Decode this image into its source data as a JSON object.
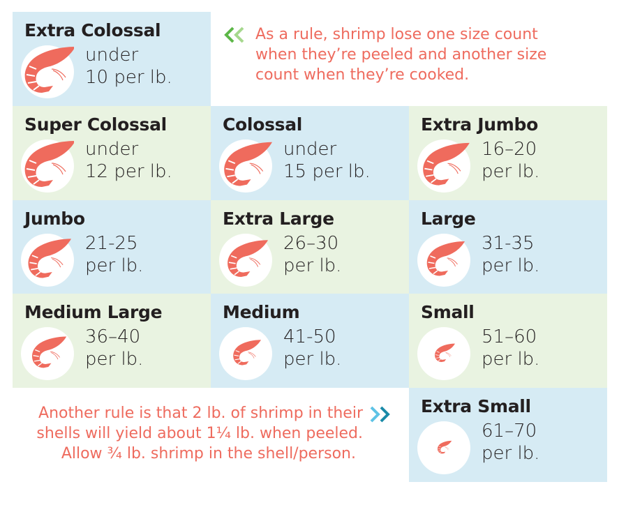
{
  "sizes": [
    {
      "name": "Extra Colossal",
      "line1": "under",
      "line2": "10 per lb.",
      "bg": "blue"
    },
    {
      "name": "Super Colossal",
      "line1": "under",
      "line2": "12 per lb.",
      "bg": "green"
    },
    {
      "name": "Colossal",
      "line1": "under",
      "line2": "15 per lb.",
      "bg": "blue"
    },
    {
      "name": "Extra Jumbo",
      "line1": "16–20",
      "line2": "per lb.",
      "bg": "green"
    },
    {
      "name": "Jumbo",
      "line1": "21-25",
      "line2": "per lb.",
      "bg": "blue"
    },
    {
      "name": "Extra Large",
      "line1": "26–30",
      "line2": "per lb.",
      "bg": "green"
    },
    {
      "name": "Large",
      "line1": "31-35",
      "line2": "per lb.",
      "bg": "blue"
    },
    {
      "name": "Medium Large",
      "line1": "36–40",
      "line2": "per lb.",
      "bg": "green"
    },
    {
      "name": "Medium",
      "line1": "41-50",
      "line2": "per lb.",
      "bg": "blue"
    },
    {
      "name": "Small",
      "line1": "51–60",
      "line2": "per lb.",
      "bg": "green"
    },
    {
      "name": "Extra Small",
      "line1": "61–70",
      "line2": "per lb.",
      "bg": "blue"
    }
  ],
  "notes": {
    "top": {
      "icon": "double-chevron-left-icon",
      "lines": [
        "As a rule, shrimp lose one size count",
        "when they’re peeled and another size",
        "count when they’re cooked."
      ]
    },
    "bottom": {
      "icon": "double-chevron-right-icon",
      "lines": [
        "Another rule is that 2 lb. of shrimp in their",
        "shells will yield about 1¼ lb. when peeled.",
        "Allow ¾ lb. shrimp in the shell/person."
      ]
    }
  },
  "colors": {
    "blue_cell": "#d6ebf4",
    "green_cell": "#e9f3e1",
    "shrimp": "#ef6b5d",
    "note_text": "#ee6b5e",
    "title_text": "#231f20",
    "chevron_green_dark": "#5cb747",
    "chevron_green_light": "#a6d88e",
    "chevron_blue_light": "#5ec3e6",
    "chevron_blue_dark": "#1a8aa8"
  }
}
